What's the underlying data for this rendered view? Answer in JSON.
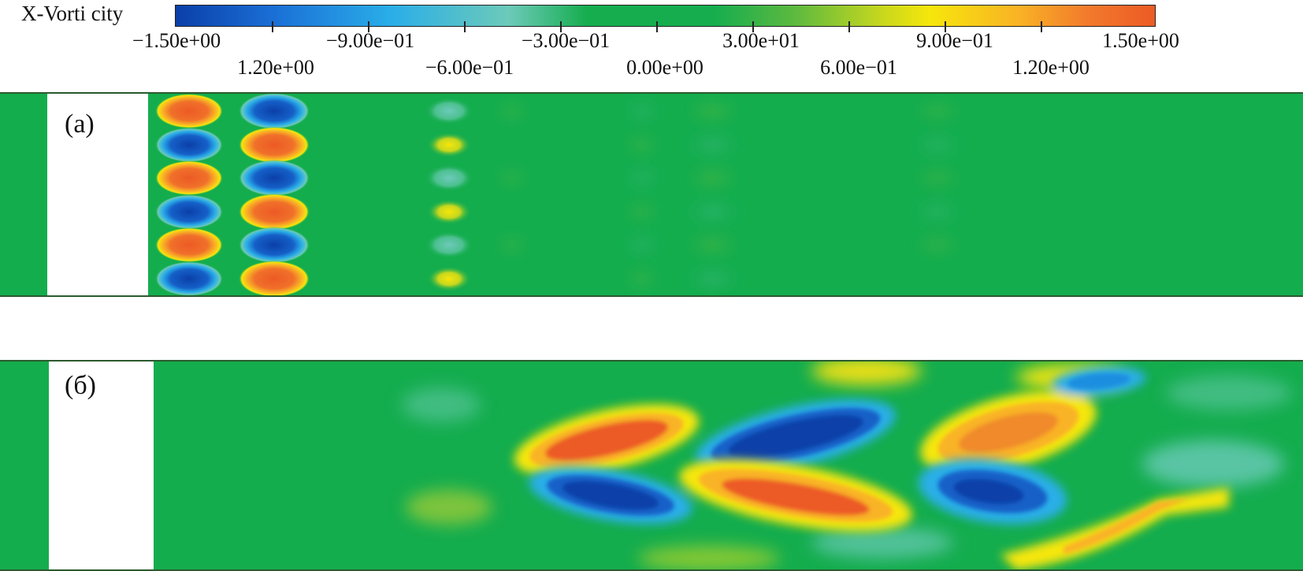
{
  "colorbar": {
    "title": "X-Vorti city",
    "row1_labels": [
      "−1.50e+00",
      "−9.00e−01",
      "−3.00e−01",
      "3.00e+01",
      "9.00e−01",
      "1.50e+00"
    ],
    "row2_labels": [
      "1.20e+00",
      "−6.00e−01",
      "0.00e+00",
      "6.00e−01",
      "1.20e+00"
    ]
  },
  "panels": [
    {
      "label": "(a)"
    },
    {
      "label": "(б)"
    }
  ],
  "colors": {
    "background_green": "#14ad4e",
    "red": "#ec5a25",
    "orange": "#f9b325",
    "yellow": "#f6e60b",
    "cyan": "#2aaee8",
    "blue": "#0b3fa8"
  }
}
